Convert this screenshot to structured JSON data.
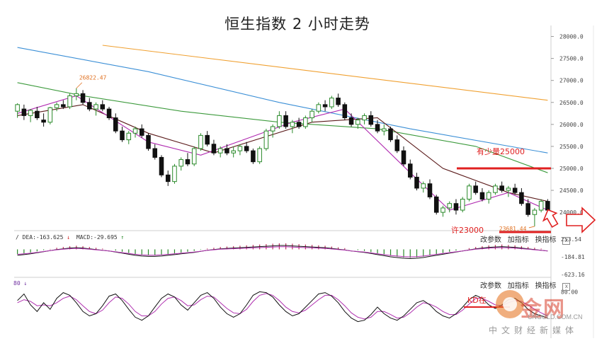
{
  "title": "恒生指数 2 小时走势",
  "colors": {
    "up": "#2a8a2a",
    "down": "#111111",
    "ma_orange": "#f0a030",
    "ma_blue": "#3b8fd6",
    "ma_green": "#3c9a3c",
    "ma_purple": "#b02ab0",
    "ma_dark": "#5a1a1a",
    "ma_gray": "#999999",
    "annot_red": "#e02020",
    "macd_bar": "#c03060",
    "kd_k": "#111111",
    "kd_d": "#b030b0"
  },
  "price_axis": [
    "28000.0",
    "27500.0",
    "27000.0",
    "26500.0",
    "26000.0",
    "25500.0",
    "25000.0",
    "24500.0",
    "24000.0"
  ],
  "macd_axis": [
    "253.54",
    "-184.81",
    "-623.16"
  ],
  "kd_axis": [
    "80.00"
  ],
  "macd_label": {
    "dea": "DEA:-163.625",
    "dea_arrow": "↓",
    "macd": "MACD:-29.695",
    "macd_arrow": "↑"
  },
  "kd_label": "80 ↓",
  "panel_buttons": [
    "改参数",
    "加指标",
    "换指标"
  ],
  "close_symbol": "x",
  "annotations": {
    "high": "26822.47",
    "low": "23681.44",
    "resistance": "有少量25000",
    "support": "许23000",
    "kd_note": "KD在"
  },
  "watermark": {
    "name": "金网",
    "url": "CNGOLD.COM.CN",
    "sub": "中文财经新媒体"
  },
  "chart_data": {
    "type": "candlestick",
    "title": "恒生指数 2 小时走势",
    "ylim": [
      23600,
      28250
    ],
    "ohlc": [
      [
        26300,
        26480,
        26150,
        26450
      ],
      [
        26350,
        26450,
        26100,
        26200
      ],
      [
        26200,
        26350,
        26050,
        26320
      ],
      [
        26300,
        26400,
        26100,
        26150
      ],
      [
        26100,
        26250,
        25950,
        26050
      ],
      [
        26050,
        26400,
        26000,
        26380
      ],
      [
        26380,
        26500,
        26300,
        26450
      ],
      [
        26450,
        26550,
        26350,
        26400
      ],
      [
        26400,
        26700,
        26350,
        26650
      ],
      [
        26650,
        26822.47,
        26550,
        26700
      ],
      [
        26700,
        26780,
        26450,
        26500
      ],
      [
        26500,
        26600,
        26300,
        26350
      ],
      [
        26350,
        26500,
        26200,
        26450
      ],
      [
        26450,
        26550,
        26300,
        26350
      ],
      [
        26350,
        26400,
        26100,
        26150
      ],
      [
        26150,
        26250,
        25800,
        25850
      ],
      [
        25850,
        25950,
        25600,
        25650
      ],
      [
        25650,
        25850,
        25550,
        25800
      ],
      [
        25800,
        25950,
        25700,
        25900
      ],
      [
        25900,
        26000,
        25700,
        25750
      ],
      [
        25750,
        25800,
        25400,
        25450
      ],
      [
        25450,
        25550,
        25200,
        25250
      ],
      [
        25250,
        25300,
        24800,
        24850
      ],
      [
        24850,
        24950,
        24600,
        24700
      ],
      [
        24700,
        25100,
        24650,
        25050
      ],
      [
        25050,
        25250,
        24950,
        25200
      ],
      [
        25200,
        25350,
        25050,
        25100
      ],
      [
        25100,
        25500,
        25050,
        25450
      ],
      [
        25450,
        25800,
        25400,
        25750
      ],
      [
        25750,
        25850,
        25500,
        25550
      ],
      [
        25550,
        25650,
        25300,
        25350
      ],
      [
        25350,
        25500,
        25250,
        25450
      ],
      [
        25450,
        25550,
        25300,
        25350
      ],
      [
        25350,
        25500,
        25250,
        25400
      ],
      [
        25400,
        25550,
        25300,
        25500
      ],
      [
        25500,
        25600,
        25350,
        25400
      ],
      [
        25400,
        25450,
        25100,
        25150
      ],
      [
        25150,
        25500,
        25100,
        25450
      ],
      [
        25450,
        25900,
        25400,
        25850
      ],
      [
        25850,
        26000,
        25700,
        25950
      ],
      [
        25950,
        26300,
        25900,
        26200
      ],
      [
        26200,
        26300,
        25900,
        25950
      ],
      [
        25950,
        26100,
        25800,
        26050
      ],
      [
        26050,
        26150,
        25900,
        25950
      ],
      [
        25950,
        26200,
        25900,
        26150
      ],
      [
        26150,
        26350,
        26050,
        26300
      ],
      [
        26300,
        26500,
        26250,
        26450
      ],
      [
        26450,
        26550,
        26300,
        26400
      ],
      [
        26400,
        26650,
        26350,
        26600
      ],
      [
        26600,
        26700,
        26400,
        26450
      ],
      [
        26450,
        26500,
        26100,
        26150
      ],
      [
        26150,
        26250,
        25950,
        26000
      ],
      [
        26000,
        26150,
        25900,
        26100
      ],
      [
        26100,
        26250,
        26000,
        26200
      ],
      [
        26200,
        26300,
        25950,
        26000
      ],
      [
        26000,
        26100,
        25800,
        25850
      ],
      [
        25850,
        26000,
        25750,
        25900
      ],
      [
        25900,
        25950,
        25600,
        25650
      ],
      [
        25650,
        25750,
        25350,
        25400
      ],
      [
        25400,
        25500,
        25050,
        25100
      ],
      [
        25100,
        25200,
        24750,
        24800
      ],
      [
        24800,
        24900,
        24500,
        24550
      ],
      [
        24550,
        24700,
        24450,
        24650
      ],
      [
        24650,
        24750,
        24300,
        24350
      ],
      [
        24350,
        24400,
        23950,
        24000
      ],
      [
        24000,
        24150,
        23900,
        24100
      ],
      [
        24100,
        24250,
        24000,
        24200
      ],
      [
        24200,
        24300,
        23950,
        24050
      ],
      [
        24050,
        24350,
        24000,
        24300
      ],
      [
        24300,
        24650,
        24250,
        24600
      ],
      [
        24600,
        24700,
        24400,
        24450
      ],
      [
        24450,
        24550,
        24250,
        24300
      ],
      [
        24300,
        24500,
        24200,
        24450
      ],
      [
        24450,
        24650,
        24400,
        24600
      ],
      [
        24600,
        24700,
        24450,
        24500
      ],
      [
        24500,
        24600,
        24350,
        24550
      ],
      [
        24550,
        24650,
        24400,
        24450
      ],
      [
        24450,
        24550,
        24150,
        24200
      ],
      [
        24200,
        24300,
        23900,
        23950
      ],
      [
        23950,
        24100,
        23681.44,
        24050
      ],
      [
        24050,
        24300,
        24000,
        24250
      ],
      [
        24250,
        24300,
        24000,
        24050
      ]
    ],
    "moving_averages": [
      {
        "color": "orange",
        "values": [
          [
            13,
            27800
          ],
          [
            81,
            26550
          ]
        ]
      },
      {
        "color": "blue",
        "values": [
          [
            0,
            27750
          ],
          [
            20,
            27200
          ],
          [
            40,
            26500
          ],
          [
            60,
            25900
          ],
          [
            81,
            25350
          ]
        ]
      },
      {
        "color": "green",
        "values": [
          [
            0,
            26950
          ],
          [
            10,
            26650
          ],
          [
            25,
            26300
          ],
          [
            40,
            26050
          ],
          [
            55,
            25900
          ],
          [
            70,
            25500
          ],
          [
            81,
            24900
          ]
        ]
      },
      {
        "color": "dark",
        "values": [
          [
            0,
            26200
          ],
          [
            10,
            26450
          ],
          [
            20,
            25800
          ],
          [
            30,
            25350
          ],
          [
            45,
            26050
          ],
          [
            55,
            26150
          ],
          [
            65,
            25000
          ],
          [
            75,
            24450
          ],
          [
            81,
            24250
          ]
        ]
      },
      {
        "color": "purple",
        "values": [
          [
            0,
            26250
          ],
          [
            9,
            26650
          ],
          [
            20,
            25600
          ],
          [
            28,
            25300
          ],
          [
            42,
            26050
          ],
          [
            50,
            26350
          ],
          [
            60,
            24900
          ],
          [
            66,
            24050
          ],
          [
            75,
            24450
          ],
          [
            81,
            24050
          ]
        ]
      }
    ],
    "macd": {
      "dea": -163.625,
      "macd": -29.695,
      "axis": [
        253.54,
        -184.81,
        -623.16
      ],
      "histogram": [
        -120,
        -100,
        -80,
        -50,
        -20,
        10,
        40,
        60,
        80,
        90,
        80,
        60,
        40,
        20,
        0,
        -30,
        -60,
        -90,
        -120,
        -140,
        -150,
        -150,
        -140,
        -120,
        -100,
        -80,
        -60,
        -40,
        -10,
        20,
        40,
        60,
        70,
        80,
        90,
        100,
        110,
        120,
        130,
        140,
        150,
        150,
        140,
        130,
        120,
        110,
        100,
        90,
        70,
        50,
        30,
        0,
        -20,
        -40,
        -70,
        -100,
        -130,
        -160,
        -180,
        -200,
        -210,
        -200,
        -180,
        -150,
        -120,
        -90,
        -60,
        -30,
        0,
        30,
        60,
        80,
        100,
        110,
        120,
        110,
        100,
        80,
        60,
        40,
        20,
        0
      ]
    },
    "kd": {
      "axis": [
        80
      ],
      "k": [
        60,
        75,
        50,
        35,
        55,
        40,
        65,
        78,
        72,
        55,
        35,
        25,
        30,
        48,
        70,
        75,
        60,
        40,
        22,
        15,
        25,
        45,
        65,
        75,
        68,
        50,
        38,
        55,
        72,
        78,
        65,
        45,
        30,
        22,
        30,
        50,
        72,
        80,
        78,
        68,
        50,
        35,
        25,
        30,
        45,
        60,
        75,
        78,
        70,
        55,
        35,
        20,
        12,
        15,
        28,
        45,
        30,
        20,
        15,
        25,
        40,
        55,
        60,
        50,
        35,
        25,
        20,
        30,
        45,
        62,
        72,
        65,
        50,
        42,
        50,
        62,
        65,
        55,
        40,
        30,
        25,
        20
      ],
      "d": [
        55,
        62,
        58,
        48,
        50,
        48,
        55,
        65,
        70,
        62,
        48,
        35,
        30,
        38,
        55,
        68,
        65,
        52,
        35,
        25,
        25,
        35,
        52,
        65,
        68,
        60,
        48,
        50,
        62,
        70,
        68,
        55,
        42,
        32,
        30,
        40,
        58,
        72,
        76,
        72,
        60,
        45,
        35,
        32,
        38,
        50,
        62,
        72,
        72,
        62,
        48,
        32,
        22,
        18,
        22,
        35,
        35,
        28,
        20,
        22,
        32,
        45,
        55,
        52,
        45,
        35,
        28,
        28,
        38,
        52,
        65,
        65,
        58,
        50,
        48,
        55,
        60,
        58,
        50,
        40,
        32,
        25
      ]
    }
  }
}
